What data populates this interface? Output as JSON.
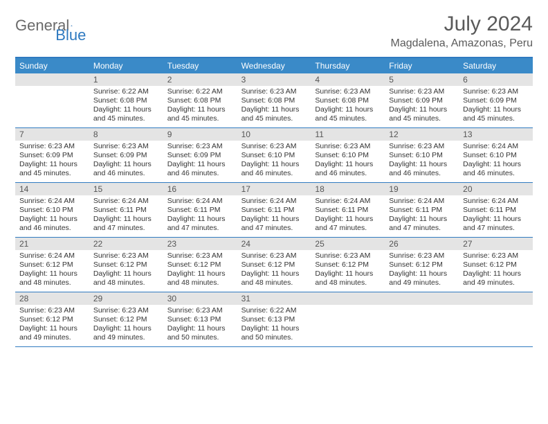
{
  "logo": {
    "part1": "General",
    "part2": "Blue"
  },
  "title": "July 2024",
  "location": "Magdalena, Amazonas, Peru",
  "colors": {
    "header_bg": "#3a8ac8",
    "border": "#2f7ac0",
    "daynum_bg": "#e4e4e4",
    "text": "#333333",
    "logo_gray": "#6a6a6a",
    "logo_blue": "#2f7ac0"
  },
  "weekdays": [
    "Sunday",
    "Monday",
    "Tuesday",
    "Wednesday",
    "Thursday",
    "Friday",
    "Saturday"
  ],
  "weeks": [
    [
      {
        "n": "",
        "sunrise": "",
        "sunset": "",
        "daylight": ""
      },
      {
        "n": "1",
        "sunrise": "Sunrise: 6:22 AM",
        "sunset": "Sunset: 6:08 PM",
        "daylight": "Daylight: 11 hours and 45 minutes."
      },
      {
        "n": "2",
        "sunrise": "Sunrise: 6:22 AM",
        "sunset": "Sunset: 6:08 PM",
        "daylight": "Daylight: 11 hours and 45 minutes."
      },
      {
        "n": "3",
        "sunrise": "Sunrise: 6:23 AM",
        "sunset": "Sunset: 6:08 PM",
        "daylight": "Daylight: 11 hours and 45 minutes."
      },
      {
        "n": "4",
        "sunrise": "Sunrise: 6:23 AM",
        "sunset": "Sunset: 6:08 PM",
        "daylight": "Daylight: 11 hours and 45 minutes."
      },
      {
        "n": "5",
        "sunrise": "Sunrise: 6:23 AM",
        "sunset": "Sunset: 6:09 PM",
        "daylight": "Daylight: 11 hours and 45 minutes."
      },
      {
        "n": "6",
        "sunrise": "Sunrise: 6:23 AM",
        "sunset": "Sunset: 6:09 PM",
        "daylight": "Daylight: 11 hours and 45 minutes."
      }
    ],
    [
      {
        "n": "7",
        "sunrise": "Sunrise: 6:23 AM",
        "sunset": "Sunset: 6:09 PM",
        "daylight": "Daylight: 11 hours and 45 minutes."
      },
      {
        "n": "8",
        "sunrise": "Sunrise: 6:23 AM",
        "sunset": "Sunset: 6:09 PM",
        "daylight": "Daylight: 11 hours and 46 minutes."
      },
      {
        "n": "9",
        "sunrise": "Sunrise: 6:23 AM",
        "sunset": "Sunset: 6:09 PM",
        "daylight": "Daylight: 11 hours and 46 minutes."
      },
      {
        "n": "10",
        "sunrise": "Sunrise: 6:23 AM",
        "sunset": "Sunset: 6:10 PM",
        "daylight": "Daylight: 11 hours and 46 minutes."
      },
      {
        "n": "11",
        "sunrise": "Sunrise: 6:23 AM",
        "sunset": "Sunset: 6:10 PM",
        "daylight": "Daylight: 11 hours and 46 minutes."
      },
      {
        "n": "12",
        "sunrise": "Sunrise: 6:23 AM",
        "sunset": "Sunset: 6:10 PM",
        "daylight": "Daylight: 11 hours and 46 minutes."
      },
      {
        "n": "13",
        "sunrise": "Sunrise: 6:24 AM",
        "sunset": "Sunset: 6:10 PM",
        "daylight": "Daylight: 11 hours and 46 minutes."
      }
    ],
    [
      {
        "n": "14",
        "sunrise": "Sunrise: 6:24 AM",
        "sunset": "Sunset: 6:10 PM",
        "daylight": "Daylight: 11 hours and 46 minutes."
      },
      {
        "n": "15",
        "sunrise": "Sunrise: 6:24 AM",
        "sunset": "Sunset: 6:11 PM",
        "daylight": "Daylight: 11 hours and 47 minutes."
      },
      {
        "n": "16",
        "sunrise": "Sunrise: 6:24 AM",
        "sunset": "Sunset: 6:11 PM",
        "daylight": "Daylight: 11 hours and 47 minutes."
      },
      {
        "n": "17",
        "sunrise": "Sunrise: 6:24 AM",
        "sunset": "Sunset: 6:11 PM",
        "daylight": "Daylight: 11 hours and 47 minutes."
      },
      {
        "n": "18",
        "sunrise": "Sunrise: 6:24 AM",
        "sunset": "Sunset: 6:11 PM",
        "daylight": "Daylight: 11 hours and 47 minutes."
      },
      {
        "n": "19",
        "sunrise": "Sunrise: 6:24 AM",
        "sunset": "Sunset: 6:11 PM",
        "daylight": "Daylight: 11 hours and 47 minutes."
      },
      {
        "n": "20",
        "sunrise": "Sunrise: 6:24 AM",
        "sunset": "Sunset: 6:11 PM",
        "daylight": "Daylight: 11 hours and 47 minutes."
      }
    ],
    [
      {
        "n": "21",
        "sunrise": "Sunrise: 6:24 AM",
        "sunset": "Sunset: 6:12 PM",
        "daylight": "Daylight: 11 hours and 48 minutes."
      },
      {
        "n": "22",
        "sunrise": "Sunrise: 6:23 AM",
        "sunset": "Sunset: 6:12 PM",
        "daylight": "Daylight: 11 hours and 48 minutes."
      },
      {
        "n": "23",
        "sunrise": "Sunrise: 6:23 AM",
        "sunset": "Sunset: 6:12 PM",
        "daylight": "Daylight: 11 hours and 48 minutes."
      },
      {
        "n": "24",
        "sunrise": "Sunrise: 6:23 AM",
        "sunset": "Sunset: 6:12 PM",
        "daylight": "Daylight: 11 hours and 48 minutes."
      },
      {
        "n": "25",
        "sunrise": "Sunrise: 6:23 AM",
        "sunset": "Sunset: 6:12 PM",
        "daylight": "Daylight: 11 hours and 48 minutes."
      },
      {
        "n": "26",
        "sunrise": "Sunrise: 6:23 AM",
        "sunset": "Sunset: 6:12 PM",
        "daylight": "Daylight: 11 hours and 49 minutes."
      },
      {
        "n": "27",
        "sunrise": "Sunrise: 6:23 AM",
        "sunset": "Sunset: 6:12 PM",
        "daylight": "Daylight: 11 hours and 49 minutes."
      }
    ],
    [
      {
        "n": "28",
        "sunrise": "Sunrise: 6:23 AM",
        "sunset": "Sunset: 6:12 PM",
        "daylight": "Daylight: 11 hours and 49 minutes."
      },
      {
        "n": "29",
        "sunrise": "Sunrise: 6:23 AM",
        "sunset": "Sunset: 6:12 PM",
        "daylight": "Daylight: 11 hours and 49 minutes."
      },
      {
        "n": "30",
        "sunrise": "Sunrise: 6:23 AM",
        "sunset": "Sunset: 6:13 PM",
        "daylight": "Daylight: 11 hours and 50 minutes."
      },
      {
        "n": "31",
        "sunrise": "Sunrise: 6:22 AM",
        "sunset": "Sunset: 6:13 PM",
        "daylight": "Daylight: 11 hours and 50 minutes."
      },
      {
        "n": "",
        "sunrise": "",
        "sunset": "",
        "daylight": ""
      },
      {
        "n": "",
        "sunrise": "",
        "sunset": "",
        "daylight": ""
      },
      {
        "n": "",
        "sunrise": "",
        "sunset": "",
        "daylight": ""
      }
    ]
  ]
}
